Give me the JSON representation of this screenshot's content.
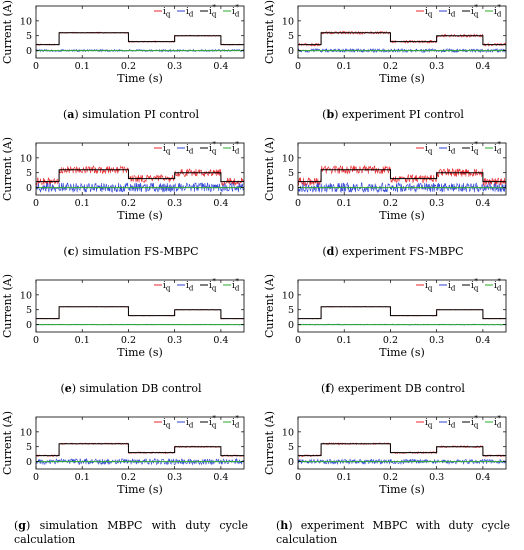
{
  "chart_data": [
    {
      "id": "a",
      "caption_tag": "a",
      "caption_text": " simulation PI control",
      "type": "line",
      "xlabel": "Time (s)",
      "ylabel": "Current (A)",
      "xlim": [
        0,
        0.45
      ],
      "ylim": [
        -2.5,
        15
      ],
      "xticks": [
        "0",
        "0.1",
        "0.2",
        "0.3",
        "0.4"
      ],
      "yticks": [
        "0",
        "5",
        "10"
      ],
      "legend_position": "top-right",
      "series": [
        {
          "name": "i_q",
          "color": "#e8262b",
          "x": [
            0,
            0.05,
            0.05,
            0.2,
            0.2,
            0.3,
            0.3,
            0.4,
            0.4,
            0.45
          ],
          "y": [
            2,
            2,
            6,
            6,
            3,
            3,
            5,
            5,
            2,
            2
          ],
          "noise": 0.2
        },
        {
          "name": "i_d",
          "color": "#2c3fd6",
          "x": [
            0,
            0.45
          ],
          "y": [
            0,
            0
          ],
          "noise": 0.35
        },
        {
          "name": "i_q*",
          "color": "#000000",
          "x": [
            0,
            0.05,
            0.05,
            0.2,
            0.2,
            0.3,
            0.3,
            0.4,
            0.4,
            0.45
          ],
          "y": [
            2,
            2,
            6,
            6,
            3,
            3,
            5,
            5,
            2,
            2
          ],
          "noise": 0
        },
        {
          "name": "i_d*",
          "color": "#2aa82a",
          "x": [
            0,
            0.45
          ],
          "y": [
            0,
            0
          ],
          "noise": 0
        }
      ]
    },
    {
      "id": "b",
      "caption_tag": "b",
      "caption_text": " experiment PI control",
      "type": "line",
      "xlabel": "Time (s)",
      "ylabel": "Current (A)",
      "xlim": [
        0,
        0.45
      ],
      "ylim": [
        -2.5,
        15
      ],
      "xticks": [
        "0",
        "0.1",
        "0.2",
        "0.3",
        "0.4"
      ],
      "yticks": [
        "0",
        "5",
        "10"
      ],
      "legend_position": "top-right",
      "series": [
        {
          "name": "i_q",
          "color": "#e8262b",
          "x": [
            0,
            0.05,
            0.05,
            0.2,
            0.2,
            0.3,
            0.3,
            0.4,
            0.4,
            0.45
          ],
          "y": [
            2,
            2,
            6,
            6,
            3,
            3,
            5,
            5,
            2,
            2
          ],
          "noise": 0.45
        },
        {
          "name": "i_d",
          "color": "#2c3fd6",
          "x": [
            0,
            0.45
          ],
          "y": [
            0,
            0
          ],
          "noise": 0.6
        },
        {
          "name": "i_q*",
          "color": "#000000",
          "x": [
            0,
            0.05,
            0.05,
            0.2,
            0.2,
            0.3,
            0.3,
            0.4,
            0.4,
            0.45
          ],
          "y": [
            2,
            2,
            6,
            6,
            3,
            3,
            5,
            5,
            2,
            2
          ],
          "noise": 0
        },
        {
          "name": "i_d*",
          "color": "#2aa82a",
          "x": [
            0,
            0.45
          ],
          "y": [
            0,
            0
          ],
          "noise": 0
        }
      ]
    },
    {
      "id": "c",
      "caption_tag": "c",
      "caption_text": " simulation FS-MBPC",
      "type": "line",
      "xlabel": "Time (s)",
      "ylabel": "Current (A)",
      "xlim": [
        0,
        0.45
      ],
      "ylim": [
        -2.5,
        15
      ],
      "xticks": [
        "0",
        "0.1",
        "0.2",
        "0.3",
        "0.4"
      ],
      "yticks": [
        "0",
        "5",
        "10"
      ],
      "legend_position": "top-right",
      "series": [
        {
          "name": "i_q",
          "color": "#e8262b",
          "x": [
            0,
            0.05,
            0.05,
            0.2,
            0.2,
            0.3,
            0.3,
            0.4,
            0.4,
            0.45
          ],
          "y": [
            2,
            2,
            6,
            6,
            3,
            3,
            5,
            5,
            2,
            2
          ],
          "noise": 1.3
        },
        {
          "name": "i_d",
          "color": "#2c3fd6",
          "x": [
            0,
            0.45
          ],
          "y": [
            0,
            0
          ],
          "noise": 1.6
        },
        {
          "name": "i_q*",
          "color": "#000000",
          "x": [
            0,
            0.05,
            0.05,
            0.2,
            0.2,
            0.3,
            0.3,
            0.4,
            0.4,
            0.45
          ],
          "y": [
            2,
            2,
            6,
            6,
            3,
            3,
            5,
            5,
            2,
            2
          ],
          "noise": 0
        },
        {
          "name": "i_d*",
          "color": "#2aa82a",
          "x": [
            0,
            0.45
          ],
          "y": [
            0,
            0
          ],
          "noise": 0
        }
      ]
    },
    {
      "id": "d",
      "caption_tag": "d",
      "caption_text": " experiment FS-MBPC",
      "type": "line",
      "xlabel": "Time (s)",
      "ylabel": "Current (A)",
      "xlim": [
        0,
        0.45
      ],
      "ylim": [
        -2.5,
        15
      ],
      "xticks": [
        "0",
        "0.1",
        "0.2",
        "0.3",
        "0.4"
      ],
      "yticks": [
        "0",
        "5",
        "10"
      ],
      "legend_position": "top-right",
      "series": [
        {
          "name": "i_q",
          "color": "#e8262b",
          "x": [
            0,
            0.05,
            0.05,
            0.2,
            0.2,
            0.3,
            0.3,
            0.4,
            0.4,
            0.45
          ],
          "y": [
            2,
            2,
            6,
            6,
            3,
            3,
            5,
            5,
            2,
            2
          ],
          "noise": 1.4
        },
        {
          "name": "i_d",
          "color": "#2c3fd6",
          "x": [
            0,
            0.45
          ],
          "y": [
            0,
            0
          ],
          "noise": 1.6
        },
        {
          "name": "i_q*",
          "color": "#000000",
          "x": [
            0,
            0.05,
            0.05,
            0.2,
            0.2,
            0.3,
            0.3,
            0.4,
            0.4,
            0.45
          ],
          "y": [
            2,
            2,
            6,
            6,
            3,
            3,
            5,
            5,
            2,
            2
          ],
          "noise": 0
        },
        {
          "name": "i_d*",
          "color": "#2aa82a",
          "x": [
            0,
            0.45
          ],
          "y": [
            0,
            0
          ],
          "noise": 0
        }
      ]
    },
    {
      "id": "e",
      "caption_tag": "e",
      "caption_text": " simulation DB control",
      "type": "line",
      "xlabel": "Time (s)",
      "ylabel": "Current (A)",
      "xlim": [
        0,
        0.45
      ],
      "ylim": [
        -2.5,
        15
      ],
      "xticks": [
        "0",
        "0.1",
        "0.2",
        "0.3",
        "0.4"
      ],
      "yticks": [
        "0",
        "5",
        "10"
      ],
      "legend_position": "top-right",
      "series": [
        {
          "name": "i_q",
          "color": "#e8262b",
          "x": [
            0,
            0.05,
            0.05,
            0.2,
            0.2,
            0.3,
            0.3,
            0.4,
            0.4,
            0.45
          ],
          "y": [
            2,
            2,
            6,
            6,
            3,
            3,
            5,
            5,
            2,
            2
          ],
          "noise": 0.12
        },
        {
          "name": "i_d",
          "color": "#2c3fd6",
          "x": [
            0,
            0.45
          ],
          "y": [
            0,
            0
          ],
          "noise": 0.12
        },
        {
          "name": "i_q*",
          "color": "#000000",
          "x": [
            0,
            0.05,
            0.05,
            0.2,
            0.2,
            0.3,
            0.3,
            0.4,
            0.4,
            0.45
          ],
          "y": [
            2,
            2,
            6,
            6,
            3,
            3,
            5,
            5,
            2,
            2
          ],
          "noise": 0
        },
        {
          "name": "i_d*",
          "color": "#2aa82a",
          "x": [
            0,
            0.45
          ],
          "y": [
            0,
            0
          ],
          "noise": 0
        }
      ]
    },
    {
      "id": "f",
      "caption_tag": "f",
      "caption_text": " experiment DB control",
      "type": "line",
      "xlabel": "Time (s)",
      "ylabel": "Current (A)",
      "xlim": [
        0,
        0.45
      ],
      "ylim": [
        -2.5,
        15
      ],
      "xticks": [
        "0",
        "0.1",
        "0.2",
        "0.3",
        "0.4"
      ],
      "yticks": [
        "0",
        "5",
        "10"
      ],
      "legend_position": "top-right",
      "series": [
        {
          "name": "i_q",
          "color": "#e8262b",
          "x": [
            0,
            0.05,
            0.05,
            0.2,
            0.2,
            0.3,
            0.3,
            0.4,
            0.4,
            0.45
          ],
          "y": [
            2,
            2,
            6,
            6,
            3,
            3,
            5,
            5,
            2,
            2
          ],
          "noise": 0.12
        },
        {
          "name": "i_d",
          "color": "#2c3fd6",
          "x": [
            0,
            0.45
          ],
          "y": [
            0,
            0
          ],
          "noise": 0.15
        },
        {
          "name": "i_q*",
          "color": "#000000",
          "x": [
            0,
            0.05,
            0.05,
            0.2,
            0.2,
            0.3,
            0.3,
            0.4,
            0.4,
            0.45
          ],
          "y": [
            2,
            2,
            6,
            6,
            3,
            3,
            5,
            5,
            2,
            2
          ],
          "noise": 0
        },
        {
          "name": "i_d*",
          "color": "#2aa82a",
          "x": [
            0,
            0.45
          ],
          "y": [
            0,
            0
          ],
          "noise": 0
        }
      ]
    },
    {
      "id": "g",
      "caption_tag": "g",
      "caption_text": " simulation MBPC with duty cycle calculation",
      "type": "line",
      "xlabel": "Time (s)",
      "ylabel": "Current (A)",
      "xlim": [
        0,
        0.45
      ],
      "ylim": [
        -2.5,
        15
      ],
      "xticks": [
        "0",
        "0.1",
        "0.2",
        "0.3",
        "0.4"
      ],
      "yticks": [
        "0",
        "5",
        "10"
      ],
      "legend_position": "top-right",
      "series": [
        {
          "name": "i_q",
          "color": "#e8262b",
          "x": [
            0,
            0.05,
            0.05,
            0.2,
            0.2,
            0.3,
            0.3,
            0.4,
            0.4,
            0.45
          ],
          "y": [
            2,
            2,
            6,
            6,
            3,
            3,
            5,
            5,
            2,
            2
          ],
          "noise": 0.25
        },
        {
          "name": "i_d",
          "color": "#2c3fd6",
          "x": [
            0,
            0.45
          ],
          "y": [
            0,
            0
          ],
          "noise": 1.0
        },
        {
          "name": "i_q*",
          "color": "#000000",
          "x": [
            0,
            0.05,
            0.05,
            0.2,
            0.2,
            0.3,
            0.3,
            0.4,
            0.4,
            0.45
          ],
          "y": [
            2,
            2,
            6,
            6,
            3,
            3,
            5,
            5,
            2,
            2
          ],
          "noise": 0
        },
        {
          "name": "i_d*",
          "color": "#2aa82a",
          "x": [
            0,
            0.45
          ],
          "y": [
            0,
            0
          ],
          "noise": 0
        }
      ]
    },
    {
      "id": "h",
      "caption_tag": "h",
      "caption_text": " experiment MBPC with duty cycle calculation",
      "type": "line",
      "xlabel": "Time (s)",
      "ylabel": "Current (A)",
      "xlim": [
        0,
        0.45
      ],
      "ylim": [
        -2.5,
        15
      ],
      "xticks": [
        "0",
        "0.1",
        "0.2",
        "0.3",
        "0.4"
      ],
      "yticks": [
        "0",
        "5",
        "10"
      ],
      "legend_position": "top-right",
      "series": [
        {
          "name": "i_q",
          "color": "#e8262b",
          "x": [
            0,
            0.05,
            0.05,
            0.2,
            0.2,
            0.3,
            0.3,
            0.4,
            0.4,
            0.45
          ],
          "y": [
            2,
            2,
            6,
            6,
            3,
            3,
            5,
            5,
            2,
            2
          ],
          "noise": 0.3
        },
        {
          "name": "i_d",
          "color": "#2c3fd6",
          "x": [
            0,
            0.45
          ],
          "y": [
            0,
            0
          ],
          "noise": 0.8
        },
        {
          "name": "i_q*",
          "color": "#000000",
          "x": [
            0,
            0.05,
            0.05,
            0.2,
            0.2,
            0.3,
            0.3,
            0.4,
            0.4,
            0.45
          ],
          "y": [
            2,
            2,
            6,
            6,
            3,
            3,
            5,
            5,
            2,
            2
          ],
          "noise": 0
        },
        {
          "name": "i_d*",
          "color": "#2aa82a",
          "x": [
            0,
            0.45
          ],
          "y": [
            0,
            0
          ],
          "noise": 0
        }
      ]
    }
  ]
}
